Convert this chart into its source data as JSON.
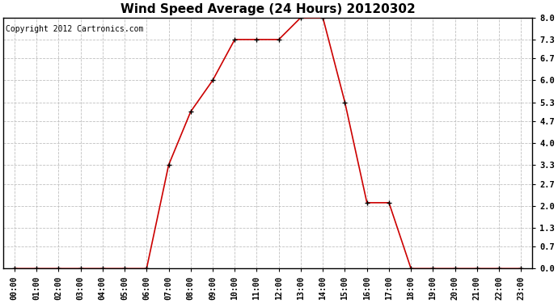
{
  "title": "Wind Speed Average (24 Hours) 20120302",
  "copyright": "Copyright 2012 Cartronics.com",
  "x_labels": [
    "00:00",
    "01:00",
    "02:00",
    "03:00",
    "04:00",
    "05:00",
    "06:00",
    "07:00",
    "08:00",
    "09:00",
    "10:00",
    "11:00",
    "12:00",
    "13:00",
    "14:00",
    "15:00",
    "16:00",
    "17:00",
    "18:00",
    "19:00",
    "20:00",
    "21:00",
    "22:00",
    "23:00"
  ],
  "x_values": [
    0,
    1,
    2,
    3,
    4,
    5,
    6,
    7,
    8,
    9,
    10,
    11,
    12,
    13,
    14,
    15,
    16,
    17,
    18,
    19,
    20,
    21,
    22,
    23
  ],
  "y_values": [
    0.0,
    0.0,
    0.0,
    0.0,
    0.0,
    0.0,
    0.0,
    3.3,
    5.0,
    6.0,
    7.3,
    7.3,
    7.3,
    8.0,
    8.0,
    5.3,
    2.1,
    2.1,
    0.0,
    0.0,
    0.0,
    0.0,
    0.0,
    0.0
  ],
  "yticks": [
    0.0,
    0.7,
    1.3,
    2.0,
    2.7,
    3.3,
    4.0,
    4.7,
    5.3,
    6.0,
    6.7,
    7.3,
    8.0
  ],
  "ylim": [
    0.0,
    8.0
  ],
  "line_color": "#cc0000",
  "marker": "+",
  "marker_color": "#000000",
  "marker_size": 4,
  "background_color": "#ffffff",
  "plot_bg_color": "#ffffff",
  "grid_color": "#c0c0c0",
  "title_fontsize": 11,
  "copyright_fontsize": 7,
  "fig_width": 6.9,
  "fig_height": 3.75
}
